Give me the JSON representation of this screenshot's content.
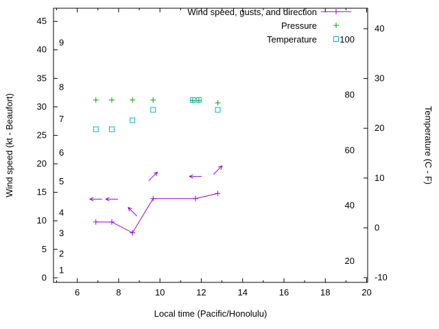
{
  "legend": {
    "items": [
      {
        "label": "Wind speed, gusts, and direction"
      },
      {
        "label": "Pressure"
      },
      {
        "label": "Temperature"
      }
    ]
  },
  "chart_data": {
    "type": "line",
    "xlabel": "Local time (Pacific/Honolulu)",
    "ylabel_left": "Wind speed (kt - Beaufort)",
    "ylabel_right": "Temperature (C - F)",
    "grid": false,
    "legend_position": "top-right-inside",
    "x_range": [
      4.85,
      20.05
    ],
    "x_ticks": [
      6,
      8,
      10,
      12,
      14,
      16,
      18,
      20
    ],
    "x_minor_step": 1,
    "left_range": [
      -0.8,
      47.3
    ],
    "left_ticks": [
      0,
      5,
      10,
      15,
      20,
      25,
      30,
      35,
      40,
      45
    ],
    "beaufort_labels": [
      {
        "b": "1",
        "kt": 1.3
      },
      {
        "b": "2",
        "kt": 4.2
      },
      {
        "b": "3",
        "kt": 7.8
      },
      {
        "b": "4",
        "kt": 11.4
      },
      {
        "b": "5",
        "kt": 16.9
      },
      {
        "b": "6",
        "kt": 21.9
      },
      {
        "b": "7",
        "kt": 27.8
      },
      {
        "b": "8",
        "kt": 33.4
      },
      {
        "b": "9",
        "kt": 41.2
      }
    ],
    "right_c_range": [
      -10.96,
      44.12
    ],
    "right_c_ticks": [
      -10,
      0,
      10,
      20,
      30,
      40
    ],
    "fahrenheit_labels": [
      20,
      40,
      60,
      80,
      100
    ],
    "series": [
      {
        "name": "Wind speed",
        "axis": "left",
        "style": "line+plus",
        "color": "#9400d3",
        "x": [
          6.9,
          7.67,
          8.67,
          9.67,
          11.72,
          12.8
        ],
        "y": [
          9.8,
          9.8,
          7.9,
          13.9,
          13.9,
          14.8
        ]
      },
      {
        "name": "Gusts and direction",
        "axis": "left",
        "style": "arrow",
        "color": "#9400d3",
        "x": [
          6.9,
          7.67,
          8.67,
          9.67,
          11.72,
          12.8
        ],
        "y": [
          13.8,
          13.8,
          11.6,
          17.8,
          17.8,
          18.9
        ],
        "angle_deg": [
          180,
          180,
          135,
          45,
          180,
          45
        ]
      },
      {
        "name": "Pressure",
        "axis": "left",
        "style": "plus",
        "color": "#00a000",
        "x": [
          6.9,
          7.67,
          8.67,
          9.67,
          11.59,
          11.88,
          12.8
        ],
        "y": [
          31.2,
          31.2,
          31.2,
          31.2,
          31.1,
          31.1,
          30.7
        ]
      },
      {
        "name": "Temperature",
        "axis": "c",
        "style": "square",
        "color": "#00b4cc",
        "x": [
          6.9,
          7.67,
          8.67,
          9.67,
          11.59,
          11.88,
          12.8
        ],
        "y": [
          19.8,
          19.8,
          21.6,
          23.7,
          25.7,
          25.7,
          23.7
        ]
      }
    ]
  }
}
